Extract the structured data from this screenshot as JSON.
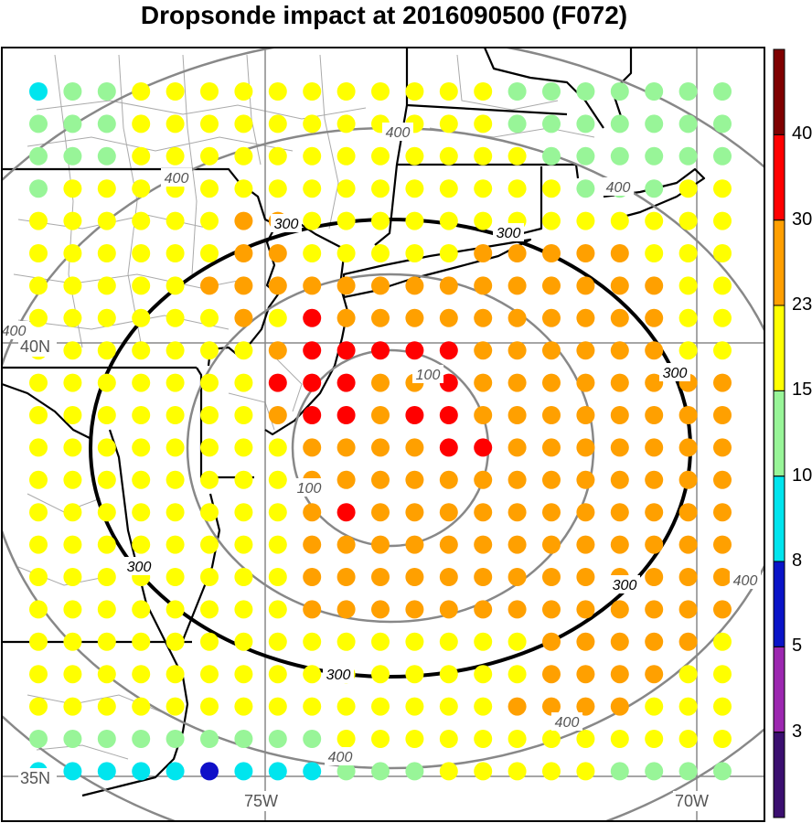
{
  "title": "Dropsonde impact at 2016090500 (F072)",
  "colors": {
    "background": "#ffffff",
    "frame": "#000000",
    "state_lines": "#000000",
    "county_lines": "#aaaaaa",
    "gridlines": "#888888",
    "range_rings": "#888888",
    "ring_300": "#000000"
  },
  "axes": {
    "lon_labels": [
      "75W",
      "70W"
    ],
    "lat_labels": [
      "40N",
      "35N"
    ]
  },
  "range_rings": {
    "unit_labels_note": "",
    "rings": [
      {
        "value": 100,
        "label": "100",
        "style": "gray"
      },
      {
        "value": 300,
        "label": "300",
        "style": "black-bold"
      },
      {
        "value": 400,
        "label": "400",
        "style": "gray"
      }
    ],
    "label_text": [
      "100",
      "100",
      "300",
      "300",
      "300",
      "300",
      "300",
      "300",
      "400",
      "400",
      "400",
      "400",
      "400",
      "400",
      "400"
    ]
  },
  "colorbar": {
    "colors": [
      "#3b0f70",
      "#9c27b0",
      "#0a14c8",
      "#00e5ee",
      "#98f598",
      "#ffff00",
      "#ff9f00",
      "#ff0000",
      "#7f0000"
    ],
    "labels": [
      "3",
      "5",
      "8",
      "10",
      "15",
      "23",
      "30",
      "40"
    ]
  },
  "category_colors": {
    "cyan": "#00e5ee",
    "blue": "#1010c8",
    "green": "#98f598",
    "yellow": "#ffff00",
    "orange": "#ffa000",
    "red": "#ff0000",
    "empty": null
  },
  "chart_data": {
    "type": "heatmap",
    "title": "Dropsonde impact at 2016090500 (F072)",
    "grid_rows": 22,
    "grid_cols": 21,
    "legend_levels": [
      3,
      5,
      8,
      10,
      15,
      23,
      30,
      40
    ],
    "codes": "C=cyan B=blue G=green Y=yellow O=orange R=red .=no dot",
    "rows": [
      "CGGYYYYYYYYYYYGGGGGGG",
      "GGGYYYYYYYYYYYGGGGGGG",
      "GGGYYYYYYYYYYYYGGGGGG",
      "GYYYYYYYYYYYYYYYGGGYY",
      "YYYYYYOOYYYYYYYYYYYYY",
      "YYYYYYOOYYYYYOOOOOYYY",
      "YYYYYOOOOOOOOOOOOOOYY",
      "YYYYYYOYROOOOOOOOOOYY",
      "YYYYYYYORRRRROOOOOOYY",
      "YYYYYYYRRROOROOOOOOOO",
      "YYYYYYYORRORROOOOOOOO",
      "YYYYYYYYOOOORROOOOOOO",
      "YYYYYYYYOOOOOOOOOOOOO",
      "YYYYYYYYOROOOOOOOOOOO",
      "YYYYYYYYOOOOOOOOOOOOO",
      "YYYYYYYYOOOOOOOOOOOOO",
      "YYYYYYYYOOOOOOOOOOOOO",
      "YYYYYYYYYYYYYYYOOOOOY",
      "YYYYYYYYYYYYYYYOOOOYY",
      "YYYYYYYYYYYYYYOOOOYYY",
      "GGGGGGGGGYYYYYYYYYYYY",
      "CCCCCBCCCGGGYYYYYGGGG"
    ]
  }
}
